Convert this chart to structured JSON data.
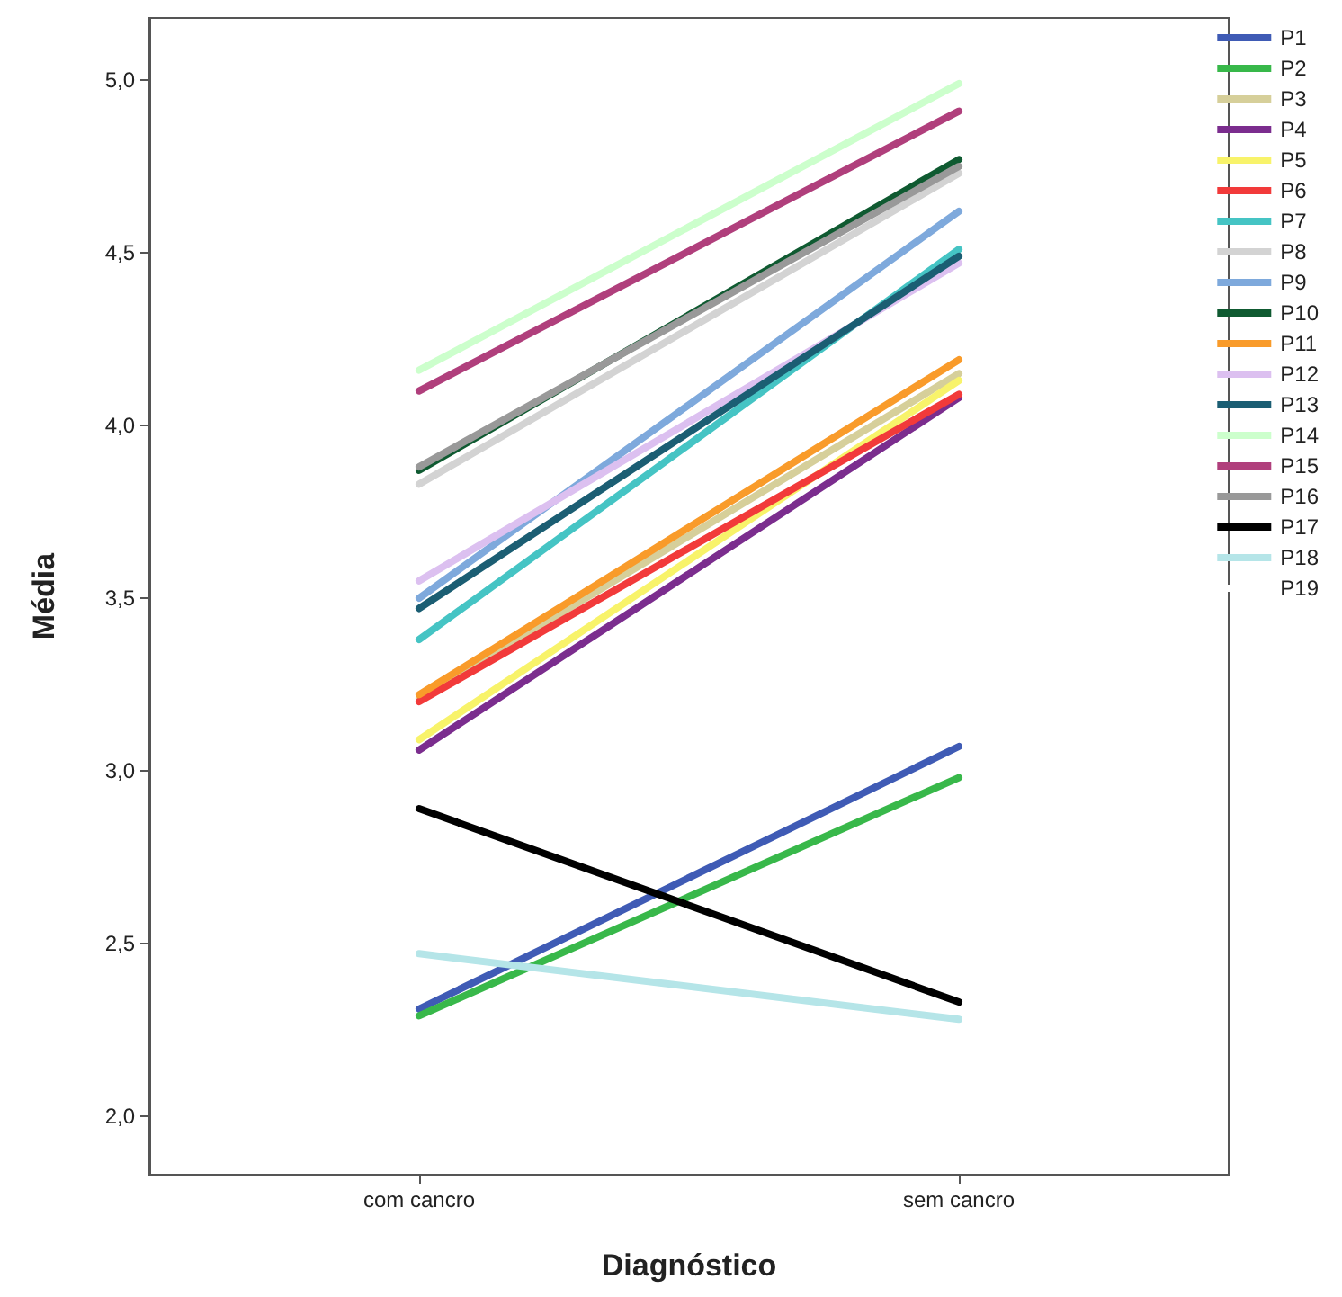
{
  "chart_data": {
    "type": "line",
    "xlabel": "Diagnóstico",
    "ylabel": "Média",
    "categories": [
      "com cancro",
      "sem cancro"
    ],
    "ylim": [
      1.83,
      5.18
    ],
    "yticks": [
      {
        "value": 2,
        "label": "2,0"
      },
      {
        "value": 2.5,
        "label": "2,5"
      },
      {
        "value": 3,
        "label": "3,0"
      },
      {
        "value": 3.5,
        "label": "3,5"
      },
      {
        "value": 4,
        "label": "4,0"
      },
      {
        "value": 4.5,
        "label": "4,5"
      },
      {
        "value": 5,
        "label": "5,0"
      }
    ],
    "grid": false,
    "legend": "right",
    "marker": "none",
    "line_style": "solid",
    "series": [
      {
        "name": "P1",
        "color": "#3f5bb5",
        "values": [
          2.31,
          3.07
        ]
      },
      {
        "name": "P2",
        "color": "#38b84a",
        "values": [
          2.29,
          2.98
        ]
      },
      {
        "name": "P3",
        "color": "#d6cf9a",
        "values": [
          3.21,
          4.15
        ]
      },
      {
        "name": "P4",
        "color": "#7b2d8e",
        "values": [
          3.06,
          4.08
        ]
      },
      {
        "name": "P5",
        "color": "#f8f36a",
        "values": [
          3.09,
          4.13
        ]
      },
      {
        "name": "P6",
        "color": "#f23a3a",
        "values": [
          3.2,
          4.09
        ]
      },
      {
        "name": "P7",
        "color": "#45c4c4",
        "values": [
          3.38,
          4.51
        ]
      },
      {
        "name": "P8",
        "color": "#d3d3d3",
        "values": [
          3.83,
          4.73
        ]
      },
      {
        "name": "P9",
        "color": "#7ea9dc",
        "values": [
          3.5,
          4.62
        ]
      },
      {
        "name": "P10",
        "color": "#0f5a31",
        "values": [
          3.87,
          4.77
        ]
      },
      {
        "name": "P11",
        "color": "#f99b2a",
        "values": [
          3.22,
          4.19
        ]
      },
      {
        "name": "P12",
        "color": "#dcc0f0",
        "values": [
          3.55,
          4.47
        ]
      },
      {
        "name": "P13",
        "color": "#1b5e73",
        "values": [
          3.47,
          4.49
        ]
      },
      {
        "name": "P14",
        "color": "#ccffcc",
        "values": [
          4.16,
          4.99
        ]
      },
      {
        "name": "P15",
        "color": "#b03f7c",
        "values": [
          4.1,
          4.91
        ]
      },
      {
        "name": "P16",
        "color": "#999999",
        "values": [
          3.88,
          4.75
        ]
      },
      {
        "name": "P17",
        "color": "#000000",
        "values": [
          2.89,
          2.33
        ]
      },
      {
        "name": "P18",
        "color": "#b5e5e8",
        "values": [
          2.47,
          2.28
        ]
      },
      {
        "name": "P19",
        "color": "#ffffff",
        "values": [
          null,
          null
        ]
      }
    ]
  }
}
